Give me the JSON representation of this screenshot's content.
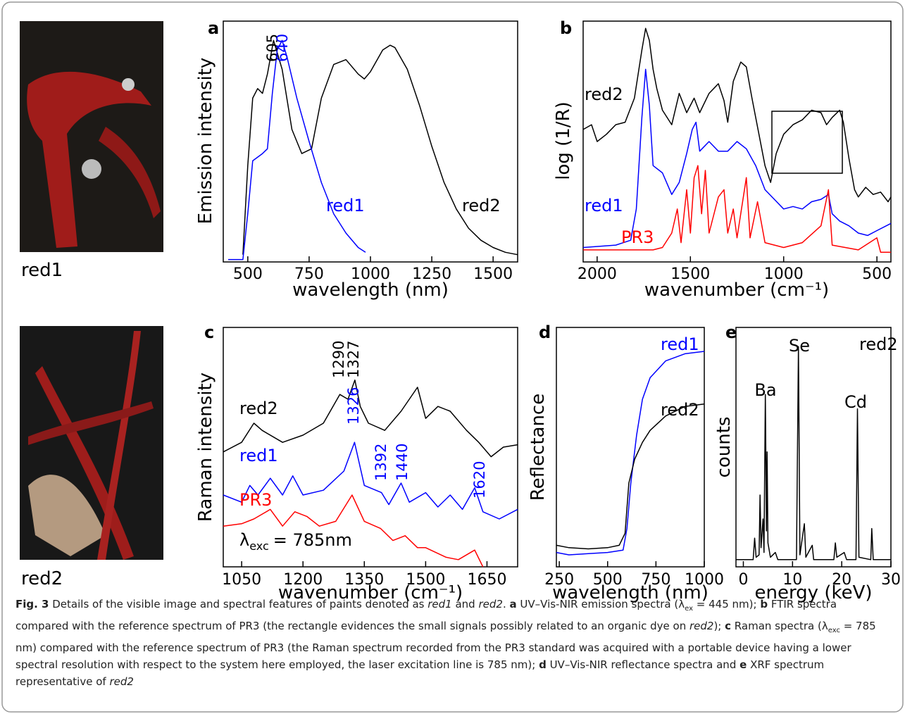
{
  "images": [
    {
      "label": "red1"
    },
    {
      "label": "red2"
    }
  ],
  "chart_data": [
    {
      "type": "line",
      "panel": "a",
      "xlabel": "wavelength (nm)",
      "ylabel": "Emission intensity",
      "xlim": [
        400,
        1600
      ],
      "ylim": [
        0,
        100
      ],
      "xticks": [
        500,
        750,
        1000,
        1250,
        1500
      ],
      "series": [
        {
          "name": "red2",
          "color": "#000000",
          "x": [
            480,
            500,
            520,
            540,
            560,
            580,
            605,
            640,
            680,
            720,
            760,
            800,
            850,
            900,
            950,
            975,
            1000,
            1050,
            1080,
            1100,
            1150,
            1200,
            1250,
            1300,
            1350,
            1400,
            1450,
            1500,
            1550,
            1600
          ],
          "values": [
            3,
            40,
            68,
            72,
            70,
            78,
            92,
            80,
            55,
            45,
            47,
            68,
            82,
            84,
            78,
            76,
            79,
            88,
            90,
            89,
            80,
            65,
            48,
            33,
            22,
            14,
            9,
            6,
            4,
            3
          ]
        },
        {
          "name": "red1",
          "color": "#0000ff",
          "x": [
            420,
            480,
            500,
            520,
            560,
            580,
            600,
            620,
            640,
            660,
            700,
            750,
            800,
            850,
            900,
            950,
            980
          ],
          "values": [
            1,
            1,
            20,
            42,
            45,
            47,
            70,
            88,
            92,
            85,
            68,
            50,
            33,
            20,
            12,
            6,
            4
          ]
        }
      ],
      "annotations": [
        {
          "text": "605",
          "color": "#000000"
        },
        {
          "text": "640",
          "color": "#0000ff"
        }
      ]
    },
    {
      "type": "line",
      "panel": "b",
      "xlabel": "wavenumber (cm⁻¹)",
      "ylabel": "log (1/R)",
      "xlim": [
        2075,
        425
      ],
      "ylim": [
        0,
        100
      ],
      "xticks": [
        2000,
        1500,
        1000,
        500
      ],
      "series": [
        {
          "name": "red2",
          "color": "#000000",
          "x": [
            2075,
            2030,
            2000,
            1950,
            1900,
            1850,
            1800,
            1760,
            1740,
            1720,
            1700,
            1680,
            1650,
            1600,
            1560,
            1520,
            1480,
            1450,
            1400,
            1350,
            1320,
            1300,
            1270,
            1230,
            1200,
            1170,
            1130,
            1100,
            1070,
            1040,
            1000,
            950,
            900,
            850,
            800,
            770,
            740,
            700,
            680,
            650,
            620,
            600,
            560,
            520,
            480,
            440,
            425
          ],
          "values": [
            55,
            57,
            50,
            53,
            57,
            58,
            68,
            88,
            97,
            92,
            80,
            72,
            63,
            57,
            70,
            62,
            68,
            62,
            70,
            74,
            67,
            58,
            75,
            83,
            81,
            68,
            52,
            40,
            33,
            45,
            53,
            57,
            59,
            63,
            62,
            57,
            60,
            63,
            58,
            43,
            30,
            27,
            31,
            28,
            29,
            25,
            27
          ]
        },
        {
          "name": "red1",
          "color": "#0000ff",
          "x": [
            2075,
            1900,
            1820,
            1790,
            1760,
            1740,
            1720,
            1700,
            1650,
            1600,
            1560,
            1520,
            1490,
            1470,
            1450,
            1400,
            1350,
            1300,
            1250,
            1200,
            1150,
            1100,
            1050,
            1000,
            950,
            900,
            850,
            800,
            760,
            740,
            700,
            650,
            600,
            550,
            500,
            450,
            425
          ],
          "values": [
            6,
            7,
            9,
            22,
            60,
            80,
            65,
            40,
            37,
            28,
            33,
            45,
            55,
            58,
            46,
            50,
            46,
            46,
            50,
            47,
            40,
            30,
            26,
            22,
            23,
            22,
            25,
            26,
            28,
            20,
            17,
            15,
            12,
            11,
            13,
            15,
            16
          ]
        },
        {
          "name": "PR3",
          "color": "#ff0000",
          "x": [
            2075,
            1700,
            1650,
            1600,
            1570,
            1550,
            1520,
            1500,
            1480,
            1460,
            1440,
            1420,
            1400,
            1350,
            1320,
            1300,
            1270,
            1250,
            1200,
            1180,
            1140,
            1100,
            1000,
            900,
            800,
            760,
            740,
            600,
            500,
            480,
            425
          ],
          "values": [
            5,
            5,
            6,
            12,
            22,
            8,
            30,
            12,
            35,
            40,
            20,
            38,
            12,
            27,
            30,
            12,
            22,
            10,
            35,
            10,
            25,
            8,
            6,
            8,
            15,
            30,
            7,
            5,
            10,
            4,
            4
          ]
        }
      ]
    },
    {
      "type": "line",
      "panel": "c",
      "xlabel": "wavenumber (cm⁻¹)",
      "ylabel": "Raman intensity",
      "xlim": [
        1005,
        1725
      ],
      "ylim": [
        0,
        100
      ],
      "xticks": [
        1050,
        1200,
        1350,
        1500,
        1650
      ],
      "series": [
        {
          "name": "red2",
          "color": "#000000",
          "x": [
            1005,
            1050,
            1080,
            1100,
            1150,
            1200,
            1250,
            1290,
            1310,
            1327,
            1340,
            1360,
            1400,
            1440,
            1480,
            1500,
            1530,
            1560,
            1600,
            1630,
            1660,
            1690,
            1725
          ],
          "values": [
            48,
            52,
            60,
            57,
            52,
            55,
            60,
            72,
            70,
            78,
            67,
            60,
            57,
            65,
            75,
            62,
            67,
            65,
            57,
            52,
            46,
            50,
            51
          ]
        },
        {
          "name": "red1",
          "color": "#0000ff",
          "x": [
            1005,
            1050,
            1070,
            1090,
            1120,
            1150,
            1175,
            1200,
            1250,
            1300,
            1326,
            1350,
            1392,
            1410,
            1440,
            1460,
            1500,
            1530,
            1560,
            1590,
            1620,
            1640,
            1680,
            1725
          ],
          "values": [
            30,
            27,
            34,
            30,
            37,
            30,
            38,
            30,
            32,
            40,
            52,
            34,
            31,
            26,
            35,
            27,
            31,
            25,
            30,
            24,
            33,
            23,
            20,
            24
          ]
        },
        {
          "name": "PR3",
          "color": "#ff0000",
          "x": [
            1005,
            1050,
            1080,
            1120,
            1150,
            1180,
            1210,
            1240,
            1280,
            1320,
            1350,
            1390,
            1420,
            1450,
            1480,
            1500,
            1550,
            1580,
            1620,
            1640
          ],
          "values": [
            17,
            18,
            20,
            24,
            17,
            23,
            21,
            17,
            19,
            30,
            19,
            16,
            11,
            13,
            8,
            8,
            4,
            3,
            7,
            0
          ]
        }
      ],
      "annotations": [
        {
          "text": "1290",
          "color": "#000000"
        },
        {
          "text": "1327",
          "color": "#000000"
        },
        {
          "text": "1326",
          "color": "#0000ff"
        },
        {
          "text": "1392",
          "color": "#0000ff"
        },
        {
          "text": "1440",
          "color": "#0000ff"
        },
        {
          "text": "1620",
          "color": "#0000ff"
        }
      ],
      "excitation": [
        "λ",
        "exc",
        "= 785nm"
      ]
    },
    {
      "type": "line",
      "panel": "d",
      "xlabel": "wavelength (nm)",
      "ylabel": "Reflectance",
      "xlim": [
        235,
        1000
      ],
      "ylim": [
        0,
        100
      ],
      "xticks": [
        250,
        500,
        750,
        1000
      ],
      "series": [
        {
          "name": "red1",
          "color": "#0000ff",
          "x": [
            235,
            300,
            400,
            500,
            580,
            600,
            620,
            650,
            680,
            720,
            800,
            900,
            1000
          ],
          "values": [
            6,
            5,
            5.5,
            6,
            7,
            16,
            35,
            55,
            70,
            79,
            86,
            89,
            90
          ]
        },
        {
          "name": "red2",
          "color": "#000000",
          "x": [
            235,
            300,
            400,
            500,
            560,
            590,
            610,
            640,
            680,
            720,
            800,
            900,
            1000
          ],
          "values": [
            9,
            8,
            7.5,
            8,
            9,
            14,
            35,
            45,
            52,
            57,
            63,
            67,
            68
          ]
        }
      ]
    },
    {
      "type": "line",
      "panel": "e",
      "xlabel": "energy (keV)",
      "ylabel": "counts",
      "xlim": [
        -1.5,
        30
      ],
      "ylim": [
        0,
        100
      ],
      "xticks": [
        0,
        10,
        20,
        30
      ],
      "series": [
        {
          "name": "red2",
          "color": "#000000",
          "x": [
            -1.5,
            2,
            2.3,
            2.6,
            3.2,
            3.4,
            3.6,
            4.0,
            4.2,
            4.47,
            4.7,
            4.83,
            5.0,
            5.5,
            6.5,
            7,
            10.8,
            11.2,
            11.5,
            12.4,
            12.7,
            14,
            14.3,
            18.4,
            18.7,
            19,
            20.5,
            21,
            22.9,
            23.2,
            23.5,
            25.9,
            26.1,
            26.4,
            30
          ],
          "values": [
            3,
            3,
            12,
            4,
            5,
            30,
            8,
            20,
            6,
            72,
            15,
            48,
            10,
            4,
            6,
            3,
            3,
            92,
            5,
            18,
            4,
            9,
            3,
            3,
            10,
            4,
            6,
            3,
            3,
            66,
            4,
            3,
            16,
            3,
            3
          ]
        }
      ],
      "annotations": [
        {
          "text": "Ba",
          "color": "#000000"
        },
        {
          "text": "Se",
          "color": "#000000"
        },
        {
          "text": "Cd",
          "color": "#000000"
        }
      ]
    }
  ],
  "caption": [
    {
      "text": "Fig. 3",
      "bold": true
    },
    {
      "text": "  Details of the visible image and spectral features of paints denoted as "
    },
    {
      "text": "red1",
      "italic": true
    },
    {
      "text": " and "
    },
    {
      "text": "red2",
      "italic": true
    },
    {
      "text": ". "
    },
    {
      "text": "a",
      "bold": true
    },
    {
      "text": " UV–Vis-NIR emission spectra (λ"
    },
    {
      "text": "ex",
      "sub": true
    },
    {
      "text": " = 445 nm); "
    },
    {
      "text": "b",
      "bold": true
    },
    {
      "text": " FTIR spectra compared with the reference spectrum of PR3 (the rectangle evidences the small signals possibly related to an organic dye on "
    },
    {
      "text": "red2",
      "italic": true
    },
    {
      "text": "); "
    },
    {
      "text": "c",
      "bold": true
    },
    {
      "text": " Raman spectra (λ"
    },
    {
      "text": "exc",
      "sub": true
    },
    {
      "text": " = 785 nm) compared with the reference spectrum of PR3 (the Raman spectrum recorded from the PR3 standard was acquired with a portable device having a lower spectral resolution with respect to the system here employed, the laser excitation line is 785 nm); "
    },
    {
      "text": "d",
      "bold": true
    },
    {
      "text": " UV–Vis-NIR reflectance spectra and "
    },
    {
      "text": "e",
      "bold": true
    },
    {
      "text": " XRF spectrum representative of "
    },
    {
      "text": "red2",
      "italic": true
    }
  ]
}
